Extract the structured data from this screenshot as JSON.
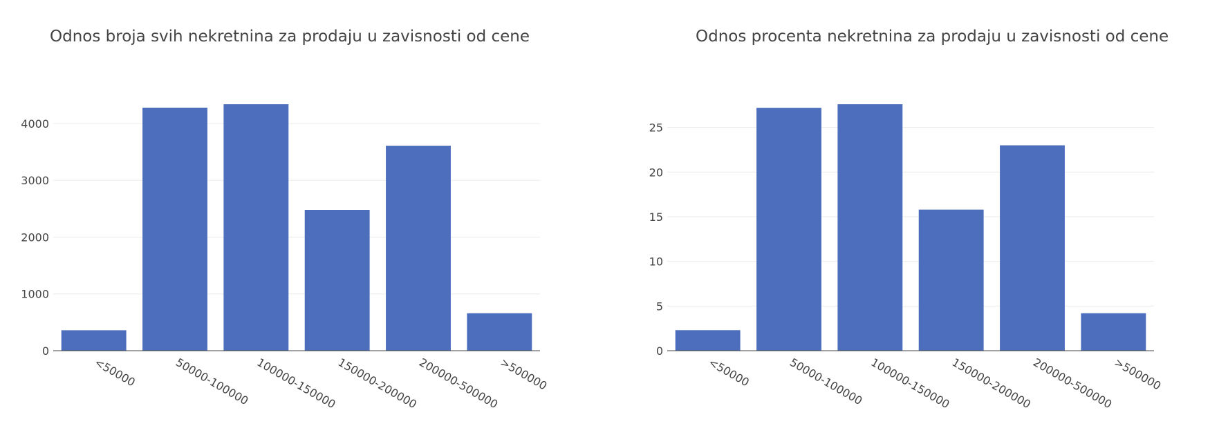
{
  "charts": [
    {
      "title": "Odnos broja svih nekretnina za prodaju u zavisnosti od cene",
      "chart_data": {
        "type": "bar",
        "title": "Odnos broja svih nekretnina za prodaju u zavisnosti od cene",
        "categories": [
          "<50000",
          "50000-100000",
          "100000-150000",
          "150000-200000",
          "200000-500000",
          ">500000"
        ],
        "values": [
          360,
          4280,
          4340,
          2480,
          3610,
          660
        ],
        "yticks": [
          0,
          1000,
          2000,
          3000,
          4000
        ],
        "ylim": [
          0,
          4340
        ],
        "xlabel": "",
        "ylabel": "",
        "grid": true,
        "bar_color": "#4c6ebc"
      }
    },
    {
      "title": "Odnos procenta nekretnina za prodaju u zavisnosti od cene",
      "chart_data": {
        "type": "bar",
        "title": "Odnos procenta nekretnina za prodaju u zavisnosti od cene",
        "categories": [
          "<50000",
          "50000-100000",
          "100000-150000",
          "150000-200000",
          "200000-500000",
          ">500000"
        ],
        "values": [
          2.3,
          27.2,
          27.6,
          15.8,
          23.0,
          4.2
        ],
        "yticks": [
          0,
          5,
          10,
          15,
          20,
          25
        ],
        "ylim": [
          0,
          27.6
        ],
        "xlabel": "",
        "ylabel": "",
        "grid": true,
        "bar_color": "#4c6ebc"
      }
    }
  ]
}
